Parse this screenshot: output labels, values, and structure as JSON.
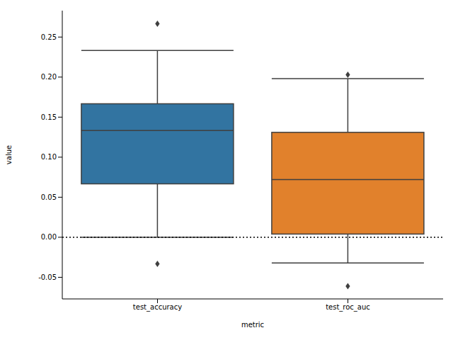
{
  "chart_data": {
    "type": "box",
    "x_label": "metric",
    "y_label": "value",
    "categories": [
      "test_accuracy",
      "test_roc_auc"
    ],
    "colors": [
      "#3274a1",
      "#e1812c"
    ],
    "boxes": [
      {
        "whislo": 0.0,
        "q1": 0.0667,
        "median": 0.1333,
        "q3": 0.1667,
        "whishi": 0.2333,
        "fliers": [
          0.2667,
          -0.0333
        ]
      },
      {
        "whislo": -0.032,
        "q1": 0.004,
        "median": 0.072,
        "q3": 0.131,
        "whishi": 0.198,
        "fliers": [
          0.203,
          -0.061
        ]
      }
    ],
    "hline": 0,
    "ylim": [
      -0.077,
      0.283
    ],
    "yticks": [
      -0.05,
      {
        "value": 0,
        "label": "0.00"
      },
      0.05,
      {
        "value": 0.1,
        "label": "0.10"
      },
      0.15,
      {
        "value": 0.2,
        "label": "0.20"
      },
      0.25
    ],
    "grid": false
  }
}
